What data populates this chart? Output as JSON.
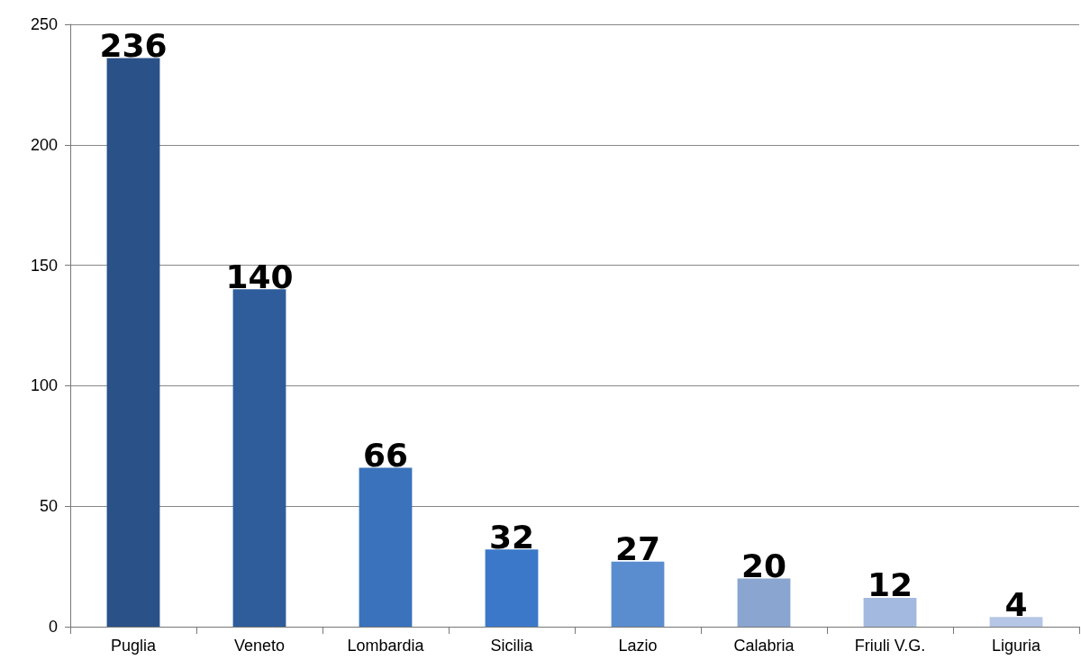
{
  "chart_data": {
    "type": "bar",
    "categories": [
      "Puglia",
      "Veneto",
      "Lombardia",
      "Sicilia",
      "Lazio",
      "Calabria",
      "Friuli V.G.",
      "Liguria"
    ],
    "values": [
      236,
      140,
      66,
      32,
      27,
      20,
      12,
      4
    ],
    "colors": [
      "#2a5188",
      "#2f5d9b",
      "#3a72bb",
      "#3b78c9",
      "#5a8dcf",
      "#8aa5d0",
      "#a3b9e0",
      "#b5c6e6"
    ],
    "ylim": [
      0,
      250
    ],
    "yticks": [
      0,
      50,
      100,
      150,
      200,
      250
    ],
    "grid": "y",
    "data_labels": true
  }
}
